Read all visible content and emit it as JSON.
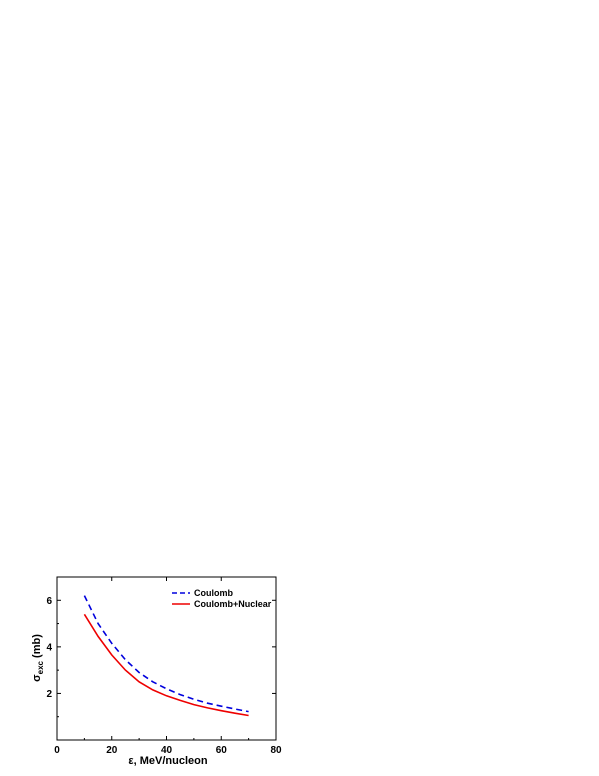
{
  "chart_data": {
    "type": "line",
    "xlabel": "ε, MeV/nucleon",
    "ylabel": {
      "main": "σ",
      "sub": "exc",
      "rest": " (mb)"
    },
    "xlim": [
      0,
      80
    ],
    "ylim": [
      0,
      7
    ],
    "xticks": [
      0,
      20,
      40,
      60,
      80
    ],
    "yticks": [
      2,
      4,
      6
    ],
    "grid": false,
    "legend_position": "top-right",
    "series": [
      {
        "name": "Coulomb",
        "color": "#0000dd",
        "style": "dashed",
        "x": [
          10,
          15,
          20,
          25,
          30,
          35,
          40,
          45,
          50,
          55,
          60,
          65,
          70
        ],
        "y": [
          6.2,
          5.0,
          4.15,
          3.45,
          2.9,
          2.5,
          2.2,
          1.95,
          1.75,
          1.58,
          1.45,
          1.33,
          1.22
        ]
      },
      {
        "name": "Coulomb+Nuclear",
        "color": "#ee0000",
        "style": "solid",
        "x": [
          10,
          15,
          20,
          25,
          30,
          35,
          40,
          45,
          50,
          55,
          60,
          65,
          70
        ],
        "y": [
          5.4,
          4.45,
          3.65,
          3.0,
          2.5,
          2.15,
          1.9,
          1.7,
          1.52,
          1.38,
          1.26,
          1.15,
          1.05
        ]
      }
    ]
  }
}
